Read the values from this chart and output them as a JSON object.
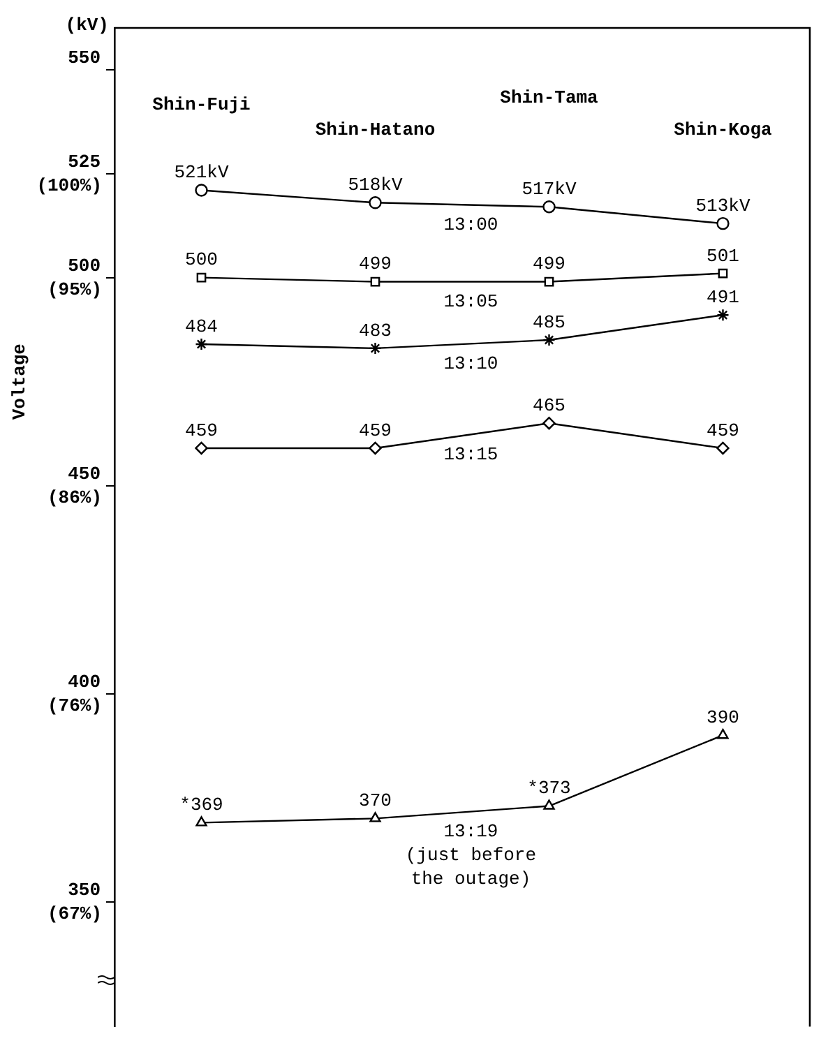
{
  "chart_data": {
    "type": "line",
    "ylabel": "Voltage",
    "annotations": [
      "(kV)"
    ],
    "categories": [
      "Shin-Fuji",
      "Shin-Hatano",
      "Shin-Tama",
      "Shin-Koga"
    ],
    "ylim": [
      60.95,
      106.67
    ],
    "yticks": [
      {
        "value": 100,
        "label": "(100%)"
      },
      {
        "value": 95.24,
        "label": "(95%)"
      },
      {
        "value": 85.71,
        "label": "(86%)"
      },
      {
        "value": 76.19,
        "label": "(76%)"
      },
      {
        "value": 66.67,
        "label": "(67%)"
      }
    ],
    "y2lim": [
      320,
      560
    ],
    "y2ticks": [
      550,
      525,
      500,
      450,
      400,
      350
    ],
    "tick_labels": "y",
    "grid": false,
    "legend": false,
    "line_style": "solid",
    "series": [
      {
        "name": "13:00",
        "color": "#000000",
        "marker": "circle",
        "axis": "y2",
        "values": [
          521,
          518,
          517,
          513
        ],
        "value_labels": [
          "521kV",
          "518kV",
          "517kV",
          "513kV"
        ]
      },
      {
        "name": "13:05",
        "color": "#000000",
        "marker": "square",
        "axis": "y2",
        "values": [
          500,
          499,
          499,
          501
        ],
        "value_labels": [
          "500",
          "499",
          "499",
          "501"
        ]
      },
      {
        "name": "13:10",
        "color": "#000000",
        "marker": "cross",
        "axis": "y2",
        "values": [
          484,
          483,
          485,
          491
        ],
        "value_labels": [
          "484",
          "483",
          "485",
          "491"
        ]
      },
      {
        "name": "13:15",
        "color": "#000000",
        "marker": "diamond",
        "axis": "y2",
        "values": [
          459,
          459,
          465,
          459
        ],
        "value_labels": [
          "459",
          "459",
          "465",
          "459"
        ]
      },
      {
        "name": "13:19\n(just before\nthe outage)",
        "color": "#000000",
        "marker": "triangle",
        "axis": "y2",
        "values": [
          369,
          370,
          373,
          390
        ],
        "value_labels": [
          "*369",
          "370",
          "*373",
          "390"
        ]
      }
    ]
  }
}
